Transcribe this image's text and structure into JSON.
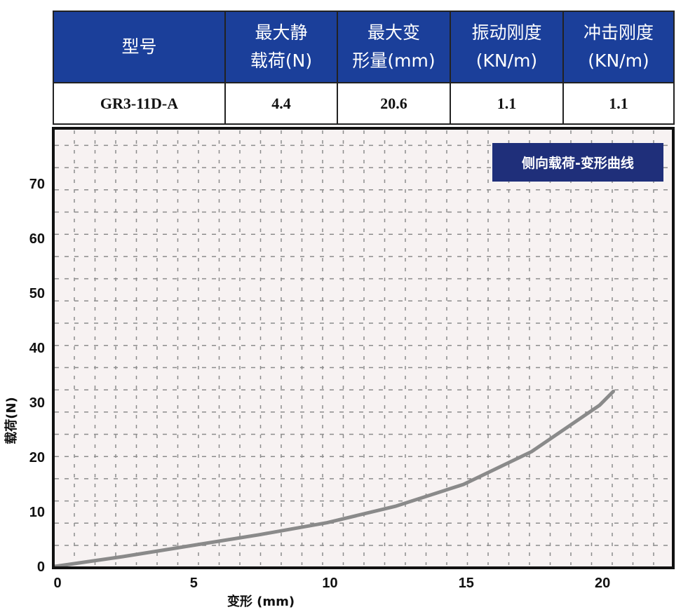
{
  "spec_table": {
    "headers": [
      "型号",
      "最大静\n载荷(N)",
      "最大变\n形量(mm)",
      "振动刚度\n(KN/m)",
      "冲击刚度\n(KN/m)"
    ],
    "rows": [
      [
        "GR3-11D-A",
        "4.4",
        "20.6",
        "1.1",
        "1.1"
      ]
    ],
    "header_color": "#1b3f9a"
  },
  "chart_data": {
    "type": "line",
    "title": "侧向载荷-变形曲线",
    "xlabel": "变形 (mm)",
    "ylabel": "载荷(N)",
    "xlim": [
      0,
      22.7
    ],
    "ylim": [
      0,
      80
    ],
    "xticks": [
      0,
      5,
      10,
      15,
      20
    ],
    "yticks": [
      0,
      10,
      20,
      30,
      40,
      50,
      60,
      70
    ],
    "grid": true,
    "series": [
      {
        "x": [
          0,
          2.5,
          5,
          7.5,
          10,
          12.5,
          15,
          17.5,
          20,
          20.5
        ],
        "y": [
          0,
          1.8,
          3.8,
          5.8,
          8,
          11,
          15,
          21,
          29.5,
          32
        ],
        "color": "#8a8a8a"
      }
    ],
    "title_box_color": "#1f2f7a",
    "plot_background": "#f7f2f2"
  }
}
